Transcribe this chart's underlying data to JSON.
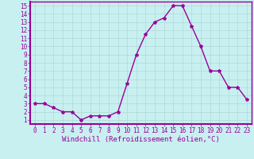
{
  "x": [
    0,
    1,
    2,
    3,
    4,
    5,
    6,
    7,
    8,
    9,
    10,
    11,
    12,
    13,
    14,
    15,
    16,
    17,
    18,
    19,
    20,
    21,
    22,
    23
  ],
  "y": [
    3.0,
    3.0,
    2.5,
    2.0,
    2.0,
    1.0,
    1.5,
    1.5,
    1.5,
    2.0,
    5.5,
    9.0,
    11.5,
    13.0,
    13.5,
    15.0,
    15.0,
    12.5,
    10.0,
    7.0,
    7.0,
    5.0,
    5.0,
    3.5
  ],
  "line_color": "#990099",
  "marker": "*",
  "marker_size": 3,
  "background_color": "#c8f0f0",
  "grid_color": "#b0d8d8",
  "xlabel": "Windchill (Refroidissement éolien,°C)",
  "xlabel_color": "#990099",
  "ylim": [
    0.5,
    15.5
  ],
  "xlim": [
    -0.5,
    23.5
  ],
  "yticks": [
    1,
    2,
    3,
    4,
    5,
    6,
    7,
    8,
    9,
    10,
    11,
    12,
    13,
    14,
    15
  ],
  "xticks": [
    0,
    1,
    2,
    3,
    4,
    5,
    6,
    7,
    8,
    9,
    10,
    11,
    12,
    13,
    14,
    15,
    16,
    17,
    18,
    19,
    20,
    21,
    22,
    23
  ],
  "tick_label_color": "#990099",
  "tick_label_fontsize": 5.5,
  "xlabel_fontsize": 6.5,
  "spine_color": "#990099",
  "line_width": 1.0
}
